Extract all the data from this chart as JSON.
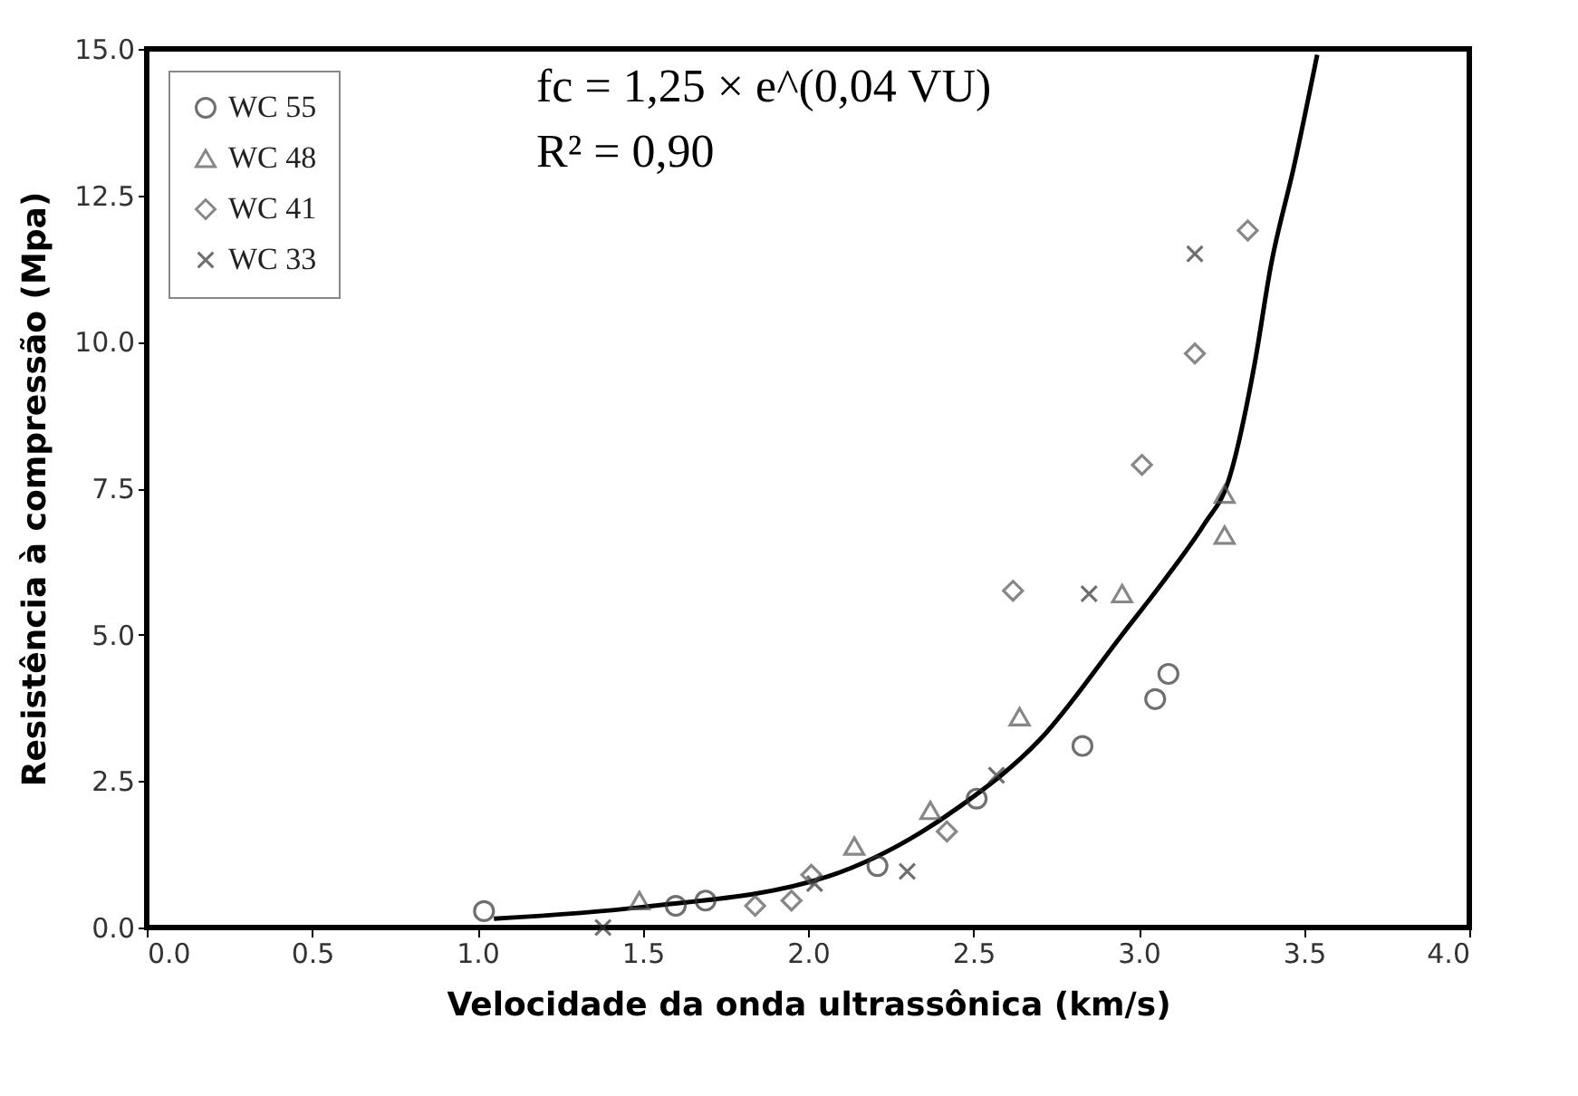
{
  "chart_data": {
    "type": "scatter",
    "xlabel": "Velocidade da onda ultrassônica (km/s)",
    "ylabel": "Resistência à compressão (Mpa)",
    "xlim": [
      0,
      4
    ],
    "ylim": [
      0,
      15
    ],
    "xticks": [
      {
        "value": 0,
        "label": "0.0"
      },
      {
        "value": 0.5,
        "label": "0.5"
      },
      {
        "value": 1,
        "label": "1.0"
      },
      {
        "value": 1.5,
        "label": "1.5"
      },
      {
        "value": 2,
        "label": "2.0"
      },
      {
        "value": 2.5,
        "label": "2.5"
      },
      {
        "value": 3,
        "label": "3.0"
      },
      {
        "value": 3.5,
        "label": "3.5"
      },
      {
        "value": 4,
        "label": "4.0"
      }
    ],
    "yticks": [
      {
        "value": 0,
        "label": "0.0"
      },
      2.5,
      {
        "value": 5,
        "label": "5.0"
      },
      7.5,
      {
        "value": 10,
        "label": "10.0"
      },
      12.5,
      {
        "value": 15,
        "label": "15.0"
      }
    ],
    "grid": false,
    "legend": "top left",
    "series": [
      {
        "name": "WC 55",
        "color": "#333333",
        "marker": "circle",
        "x": [
          1.02,
          1.6,
          1.69,
          2.21,
          2.51,
          2.83,
          3.05,
          3.09
        ],
        "values": [
          0.28,
          0.37,
          0.46,
          1.05,
          2.2,
          3.1,
          3.9,
          4.33
        ]
      },
      {
        "name": "WC 48",
        "color": "#555555",
        "marker": "triangle",
        "x": [
          1.49,
          2.14,
          2.37,
          2.64,
          2.95,
          3.26,
          3.26
        ],
        "values": [
          0.46,
          1.39,
          2.0,
          3.6,
          5.7,
          6.7,
          7.4
        ]
      },
      {
        "name": "WC 41",
        "color": "#555555",
        "marker": "diamond",
        "x": [
          1.84,
          1.95,
          2.01,
          2.42,
          2.62,
          3.01,
          3.17,
          3.33
        ],
        "values": [
          0.37,
          0.46,
          0.9,
          1.64,
          5.75,
          7.9,
          9.8,
          11.9
        ]
      },
      {
        "name": "WC 33",
        "color": "#333333",
        "marker": "cross",
        "x": [
          1.38,
          2.02,
          2.3,
          2.57,
          2.85,
          3.17
        ],
        "values": [
          0.0,
          0.75,
          0.96,
          2.6,
          5.7,
          11.5
        ]
      },
      {
        "type": "line",
        "color": "#000000",
        "marker": "none",
        "line_style": "solid",
        "x": [
          1.05,
          1.5,
          2.06,
          2.46,
          2.7,
          2.95,
          3.1,
          3.2,
          3.27,
          3.35,
          3.4,
          3.47,
          3.54
        ],
        "values": [
          0.15,
          0.35,
          0.87,
          2.07,
          3.2,
          5.0,
          6.1,
          6.9,
          7.6,
          9.6,
          11.3,
          13.0,
          14.9
        ]
      }
    ],
    "annotations": [
      "fc = 1,25 × e^(0,04 VU)",
      "R² = 0,90"
    ]
  }
}
